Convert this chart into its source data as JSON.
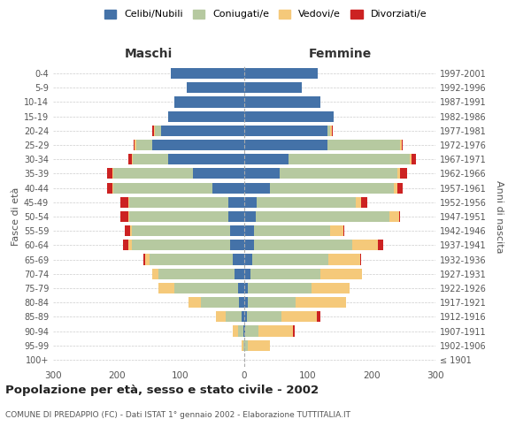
{
  "age_groups": [
    "100+",
    "95-99",
    "90-94",
    "85-89",
    "80-84",
    "75-79",
    "70-74",
    "65-69",
    "60-64",
    "55-59",
    "50-54",
    "45-49",
    "40-44",
    "35-39",
    "30-34",
    "25-29",
    "20-24",
    "15-19",
    "10-14",
    "5-9",
    "0-4"
  ],
  "birth_years": [
    "≤ 1901",
    "1902-1906",
    "1907-1911",
    "1912-1916",
    "1917-1921",
    "1922-1926",
    "1927-1931",
    "1932-1936",
    "1937-1941",
    "1942-1946",
    "1947-1951",
    "1952-1956",
    "1957-1961",
    "1962-1966",
    "1967-1971",
    "1972-1976",
    "1977-1981",
    "1982-1986",
    "1987-1991",
    "1992-1996",
    "1997-2001"
  ],
  "male": {
    "celibi": [
      0,
      0,
      2,
      4,
      8,
      10,
      15,
      18,
      22,
      22,
      25,
      25,
      50,
      80,
      120,
      145,
      130,
      120,
      110,
      90,
      115
    ],
    "coniugati": [
      0,
      2,
      8,
      25,
      60,
      100,
      120,
      130,
      155,
      155,
      155,
      155,
      155,
      125,
      55,
      25,
      10,
      0,
      0,
      0,
      0
    ],
    "vedovi": [
      0,
      2,
      8,
      15,
      20,
      25,
      10,
      8,
      5,
      2,
      2,
      2,
      2,
      2,
      2,
      2,
      2,
      0,
      0,
      0,
      0
    ],
    "divorziati": [
      0,
      0,
      0,
      0,
      0,
      0,
      0,
      2,
      8,
      8,
      12,
      12,
      8,
      8,
      5,
      2,
      2,
      0,
      0,
      0,
      0
    ]
  },
  "female": {
    "nubili": [
      0,
      0,
      2,
      4,
      5,
      5,
      10,
      12,
      15,
      15,
      18,
      20,
      40,
      55,
      70,
      130,
      130,
      140,
      120,
      90,
      115
    ],
    "coniugate": [
      0,
      5,
      20,
      55,
      75,
      100,
      110,
      120,
      155,
      120,
      210,
      155,
      195,
      185,
      190,
      115,
      5,
      0,
      0,
      0,
      0
    ],
    "vedove": [
      0,
      35,
      55,
      55,
      80,
      60,
      65,
      50,
      40,
      20,
      15,
      8,
      5,
      5,
      2,
      2,
      2,
      0,
      0,
      0,
      0
    ],
    "divorziate": [
      0,
      0,
      2,
      5,
      0,
      0,
      0,
      2,
      8,
      2,
      2,
      10,
      8,
      10,
      8,
      2,
      2,
      0,
      0,
      0,
      0
    ]
  },
  "colors": {
    "celibi": "#4472a8",
    "coniugati": "#b6c9a0",
    "vedovi": "#f5c97a",
    "divorziati": "#cc2222"
  },
  "title": "Popolazione per età, sesso e stato civile - 2002",
  "subtitle": "COMUNE DI PREDAPPIO (FC) - Dati ISTAT 1° gennaio 2002 - Elaborazione TUTTITALIA.IT",
  "xlabel_left": "Maschi",
  "xlabel_right": "Femmine",
  "ylabel_left": "Fasce di età",
  "ylabel_right": "Anni di nascita",
  "xlim": 300,
  "legend_labels": [
    "Celibi/Nubili",
    "Coniugati/e",
    "Vedovi/e",
    "Divorziati/e"
  ],
  "background_color": "#ffffff",
  "grid_color": "#cccccc"
}
